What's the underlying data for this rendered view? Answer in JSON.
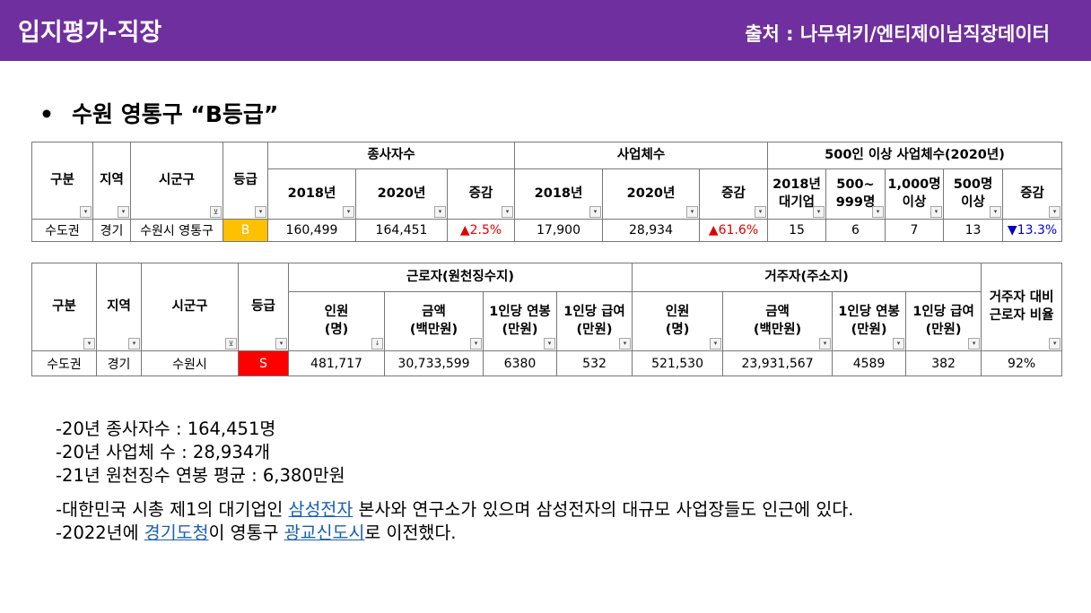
{
  "header": {
    "title": "입지평가-직장",
    "source": "출처 : 나무위키/엔티제이님직장데이터"
  },
  "section": {
    "bullet": "•",
    "title": "수원 영통구 “B등급”"
  },
  "table1": {
    "col_gubun": "구분",
    "col_region": "지역",
    "col_sigungu": "시군구",
    "col_grade": "등급",
    "group_employees": "종사자수",
    "group_businesses": "사업체수",
    "group_large": "500인 이상 사업체수(2020년)",
    "sub_2018": "2018년",
    "sub_2020": "2020년",
    "sub_change": "증감",
    "sub_large_2018_a": "2018년",
    "sub_large_2018_b": "대기업",
    "sub_500_a": "500~",
    "sub_500_b": "999명",
    "sub_1000_a": "1,000명",
    "sub_1000_b": "이상",
    "sub_500up_a": "500명",
    "sub_500up_b": "이상",
    "row": {
      "gubun": "수도권",
      "region": "경기",
      "sigungu": "수원시 영통구",
      "grade": "B",
      "emp_2018": "160,499",
      "emp_2020": "164,451",
      "emp_change": "▲2.5%",
      "biz_2018": "17,900",
      "biz_2020": "28,934",
      "biz_change": "▲61.6%",
      "large_2018": "15",
      "large_500_999": "6",
      "large_1000": "7",
      "large_500up": "13",
      "large_change": "▼13.3%"
    }
  },
  "table2": {
    "col_gubun": "구분",
    "col_region": "지역",
    "col_sigungu": "시군구",
    "col_grade": "등급",
    "group_workers": "근로자(원천징수지)",
    "group_residents": "거주자(주소지)",
    "col_ratio_a": "거주자 대비",
    "col_ratio_b": "근로자 비율",
    "sub_people_a": "인원",
    "sub_people_b": "(명)",
    "sub_amount_a": "금액",
    "sub_amount_b": "(백만원)",
    "sub_salary_a": "1인당 연봉",
    "sub_salary_b": "(만원)",
    "sub_pay_a": "1인당 급여",
    "sub_pay_b": "(만원)",
    "row": {
      "gubun": "수도권",
      "region": "경기",
      "sigungu": "수원시",
      "grade": "S",
      "w_people": "481,717",
      "w_amount": "30,733,599",
      "w_salary": "6380",
      "w_pay": "532",
      "r_people": "521,530",
      "r_amount": "23,931,567",
      "r_salary": "4589",
      "r_pay": "382",
      "ratio": "92%"
    }
  },
  "notes": {
    "line1": "-20년 종사자수 : 164,451명",
    "line2": "-20년 사업체 수 : 28,934개",
    "line3": "-21년 원천징수 연봉 평균 : 6,380만원",
    "line4_pre": "-대한민국 시총 제1의 대기업인 ",
    "line4_link": "삼성전자",
    "line4_post": " 본사와 연구소가 있으며 삼성전자의 대규모 사업장들도 인근에 있다.",
    "line5_pre": "-2022년에 ",
    "line5_link1": "경기도청",
    "line5_mid": "이 영통구 ",
    "line5_link2": "광교신도시",
    "line5_post": "로 이전했다."
  },
  "colors": {
    "header_bg": "#6f2f9f",
    "grade_b": "#ffc000",
    "grade_s": "#ff0000",
    "up": "#e00000",
    "down": "#0000c0",
    "link": "#1a5fb4"
  },
  "icons": {
    "dropdown": "▾",
    "filter": "⊻",
    "sort": "↓"
  }
}
